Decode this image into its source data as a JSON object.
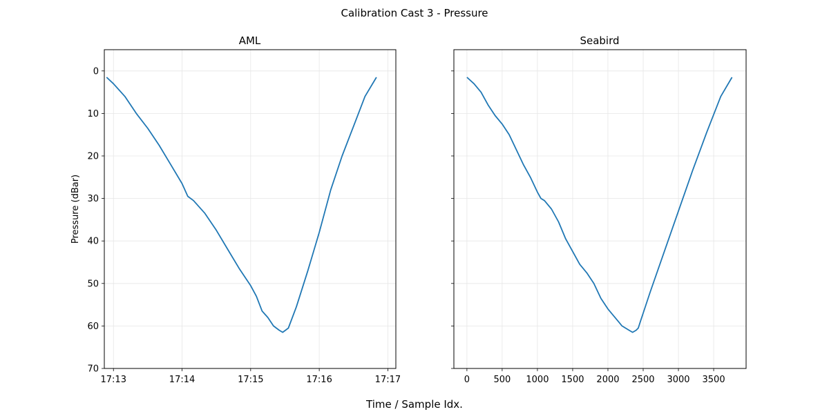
{
  "figure": {
    "title": "Calibration Cast 3 - Pressure",
    "xlabel": "Time / Sample Idx."
  },
  "colors": {
    "line": "#1f77b4",
    "grid": "#e6e6e6",
    "axes": "#000000",
    "background": "#ffffff"
  },
  "chart_data": [
    {
      "type": "line",
      "title": "AML",
      "xlabel": "",
      "ylabel": "Pressure (dBar)",
      "x_kind": "time",
      "xlim": [
        "17:12:52",
        "17:17:07"
      ],
      "ylim": [
        70,
        -5
      ],
      "y_inverted": true,
      "grid": true,
      "x_ticks": [
        "17:13",
        "17:14",
        "17:15",
        "17:16",
        "17:17"
      ],
      "y_ticks": [
        0,
        10,
        20,
        30,
        40,
        50,
        60,
        70
      ],
      "series": [
        {
          "x": [
            "17:12:54",
            "17:13:00",
            "17:13:10",
            "17:13:20",
            "17:13:30",
            "17:13:40",
            "17:13:50",
            "17:14:00",
            "17:14:05",
            "17:14:10",
            "17:14:20",
            "17:14:30",
            "17:14:40",
            "17:14:50",
            "17:15:00",
            "17:15:05",
            "17:15:10",
            "17:15:15",
            "17:15:20",
            "17:15:25",
            "17:15:28",
            "17:15:33",
            "17:15:40",
            "17:15:50",
            "17:16:00",
            "17:16:10",
            "17:16:20",
            "17:16:30",
            "17:16:40",
            "17:16:50"
          ],
          "values": [
            1.5,
            3.0,
            6.0,
            10.0,
            13.5,
            17.5,
            22.0,
            26.5,
            29.5,
            30.5,
            33.5,
            37.5,
            42.0,
            46.5,
            50.5,
            53.0,
            56.5,
            58.0,
            60.0,
            61.0,
            61.5,
            60.5,
            55.5,
            47.0,
            38.0,
            28.0,
            20.0,
            13.0,
            6.0,
            1.5
          ]
        }
      ]
    },
    {
      "type": "line",
      "title": "Seabird",
      "xlabel": "",
      "ylabel": "",
      "xlim": [
        -185,
        3960
      ],
      "ylim": [
        70,
        -5
      ],
      "y_inverted": true,
      "grid": true,
      "x_ticks": [
        0,
        500,
        1000,
        1500,
        2000,
        2500,
        3000,
        3500
      ],
      "series": [
        {
          "x": [
            0,
            100,
            200,
            300,
            400,
            500,
            600,
            700,
            800,
            900,
            1000,
            1050,
            1100,
            1200,
            1300,
            1400,
            1500,
            1600,
            1700,
            1800,
            1900,
            2000,
            2100,
            2150,
            2200,
            2300,
            2350,
            2400,
            2430,
            2460,
            2500,
            2600,
            2800,
            3000,
            3200,
            3400,
            3600,
            3760
          ],
          "values": [
            1.5,
            3.0,
            5.0,
            8.0,
            10.5,
            12.5,
            15.0,
            18.5,
            22.0,
            25.0,
            28.5,
            30.0,
            30.5,
            32.5,
            35.5,
            39.5,
            42.5,
            45.5,
            47.5,
            50.0,
            53.5,
            56.0,
            58.0,
            59.0,
            60.0,
            61.0,
            61.5,
            61.0,
            60.5,
            59.0,
            57.0,
            52.0,
            42.5,
            33.0,
            23.5,
            14.5,
            6.0,
            1.5
          ]
        }
      ]
    }
  ]
}
